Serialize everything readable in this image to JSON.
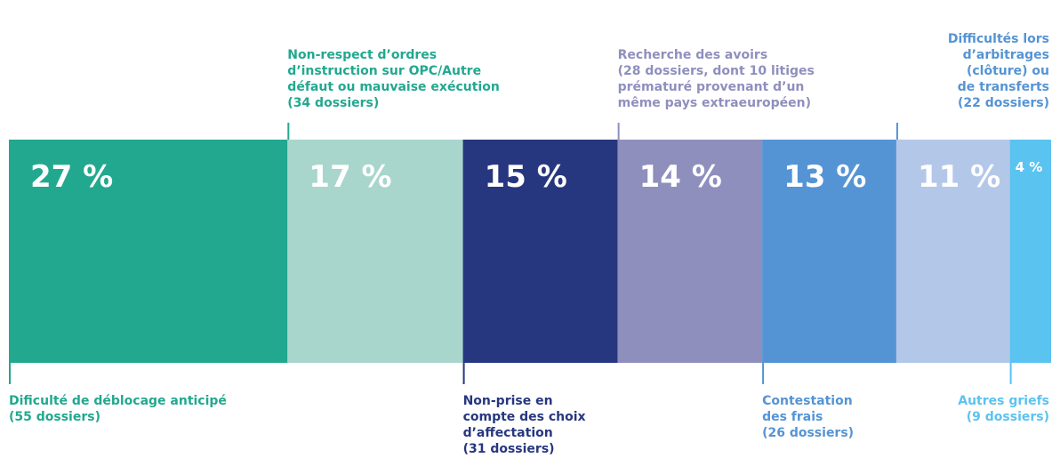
{
  "chart_data": {
    "type": "stacked-bar-100",
    "categories": [
      [
        "Dificulté de déblocage anticipé",
        "(55 dossiers)"
      ],
      [
        "Non-respect d’ordres",
        "d’instruction sur OPC/Autre",
        "défaut ou mauvaise exécution",
        "(34 dossiers)"
      ],
      [
        "Non-prise en",
        "compte des choix",
        "d’affectation",
        "(31 dossiers)"
      ],
      [
        "Recherche des avoirs",
        "(28 dossiers, dont 10 litiges",
        "prématuré provenant d’un",
        "même pays extraeuropéen)"
      ],
      [
        "Contestation",
        "des frais",
        "(26 dossiers)"
      ],
      [
        "Difficultés lors",
        "d’arbitrages",
        "(clôture) ou",
        "de transferts",
        "(22 dossiers)"
      ],
      [
        "Autres griefs",
        "(9 dossiers)"
      ]
    ],
    "values": [
      27,
      17,
      15,
      14,
      13,
      11,
      4
    ],
    "value_labels": [
      "27 %",
      "17 %",
      "15 %",
      "14 %",
      "13 %",
      "11 %",
      "4 %"
    ],
    "colors": [
      "#22a88f",
      "#a8d5cc",
      "#27377f",
      "#8f8fbe",
      "#5594d4",
      "#b3c7e8",
      "#5bc3f0"
    ],
    "label_colors": [
      "#22a88f",
      "#22a88f",
      "#27377f",
      "#8f8fbe",
      "#5594d4",
      "#5594d4",
      "#5bc3f0"
    ]
  }
}
